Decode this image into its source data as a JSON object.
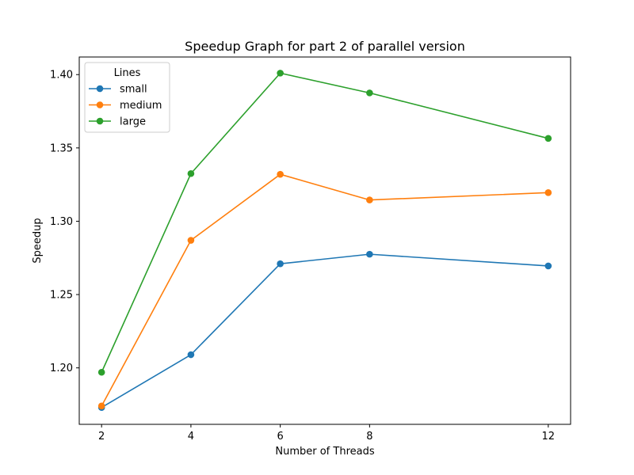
{
  "chart_data": {
    "type": "line",
    "title": "Speedup Graph for part 2 of parallel version",
    "xlabel": "Number of Threads",
    "ylabel": "Speedup",
    "x": [
      2,
      4,
      6,
      8,
      12
    ],
    "xticks": [
      2,
      4,
      6,
      8,
      12
    ],
    "xlim": [
      1.5,
      12.5
    ],
    "yticks": [
      1.2,
      1.25,
      1.3,
      1.35,
      1.4
    ],
    "ytick_labels": [
      "1.20",
      "1.25",
      "1.30",
      "1.35",
      "1.40"
    ],
    "ylim": [
      1.1615,
      1.412
    ],
    "grid": false,
    "legend": {
      "title": "Lines",
      "placement": "upper-left"
    },
    "series": [
      {
        "name": "small",
        "color": "#1f77b4",
        "values": [
          1.173,
          1.209,
          1.271,
          1.2775,
          1.2695
        ]
      },
      {
        "name": "medium",
        "color": "#ff7f0e",
        "values": [
          1.174,
          1.287,
          1.332,
          1.3145,
          1.3195
        ]
      },
      {
        "name": "large",
        "color": "#2ca02c",
        "values": [
          1.197,
          1.3325,
          1.401,
          1.3875,
          1.3565
        ]
      }
    ]
  }
}
